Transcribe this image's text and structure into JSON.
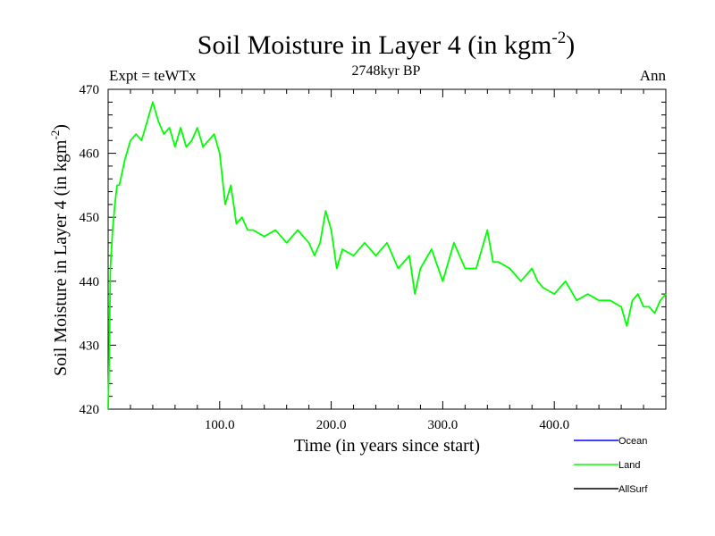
{
  "chart_data": {
    "type": "line",
    "title": "Soil Moisture in Layer 4 (in kgm",
    "title_sup": "-2",
    "title_close": ")",
    "subtitle_left": "Expt = teWTx",
    "subtitle_center": "2748kyr BP",
    "subtitle_right": "Ann",
    "xlabel": "Time (in years since start)",
    "ylabel": "Soil Moisture in Layer 4 (in kgm",
    "ylabel_sup": "-2",
    "ylabel_close": ")",
    "xlim": [
      0,
      500
    ],
    "ylim": [
      420,
      470
    ],
    "x_ticks": [
      100,
      200,
      300,
      400
    ],
    "x_tick_labels": [
      "100.0",
      "200.0",
      "300.0",
      "400.0"
    ],
    "y_ticks": [
      420,
      430,
      440,
      450,
      460,
      470
    ],
    "y_tick_labels": [
      "420",
      "430",
      "440",
      "450",
      "460",
      "470"
    ],
    "legend": [
      {
        "name": "Ocean",
        "color": "#0000ff"
      },
      {
        "name": "Land",
        "color": "#00ff00"
      },
      {
        "name": "AllSurf",
        "color": "#000000"
      }
    ],
    "series": [
      {
        "name": "Land",
        "color": "#00ff00",
        "x": [
          0,
          1,
          2,
          4,
          6,
          8,
          10,
          15,
          20,
          25,
          30,
          35,
          40,
          45,
          50,
          55,
          60,
          65,
          70,
          75,
          80,
          85,
          90,
          95,
          100,
          105,
          110,
          115,
          120,
          125,
          130,
          140,
          150,
          160,
          170,
          180,
          185,
          190,
          195,
          200,
          205,
          210,
          220,
          230,
          240,
          250,
          260,
          270,
          275,
          280,
          290,
          300,
          310,
          320,
          330,
          335,
          340,
          345,
          350,
          360,
          370,
          380,
          385,
          390,
          400,
          410,
          420,
          430,
          440,
          450,
          460,
          465,
          470,
          475,
          480,
          485,
          490,
          495,
          500
        ],
        "values": [
          420,
          428,
          442,
          448,
          452,
          455,
          455,
          459,
          462,
          463,
          462,
          465,
          468,
          465,
          463,
          464,
          461,
          464,
          461,
          462,
          464,
          461,
          462,
          463,
          460,
          452,
          455,
          449,
          450,
          448,
          448,
          447,
          448,
          446,
          448,
          446,
          444,
          446,
          451,
          448,
          442,
          445,
          444,
          446,
          444,
          446,
          442,
          444,
          438,
          442,
          445,
          440,
          446,
          442,
          442,
          445,
          448,
          443,
          443,
          442,
          440,
          442,
          440,
          439,
          438,
          440,
          437,
          438,
          437,
          437,
          436,
          433,
          437,
          438,
          436,
          436,
          435,
          437,
          438
        ]
      }
    ]
  }
}
